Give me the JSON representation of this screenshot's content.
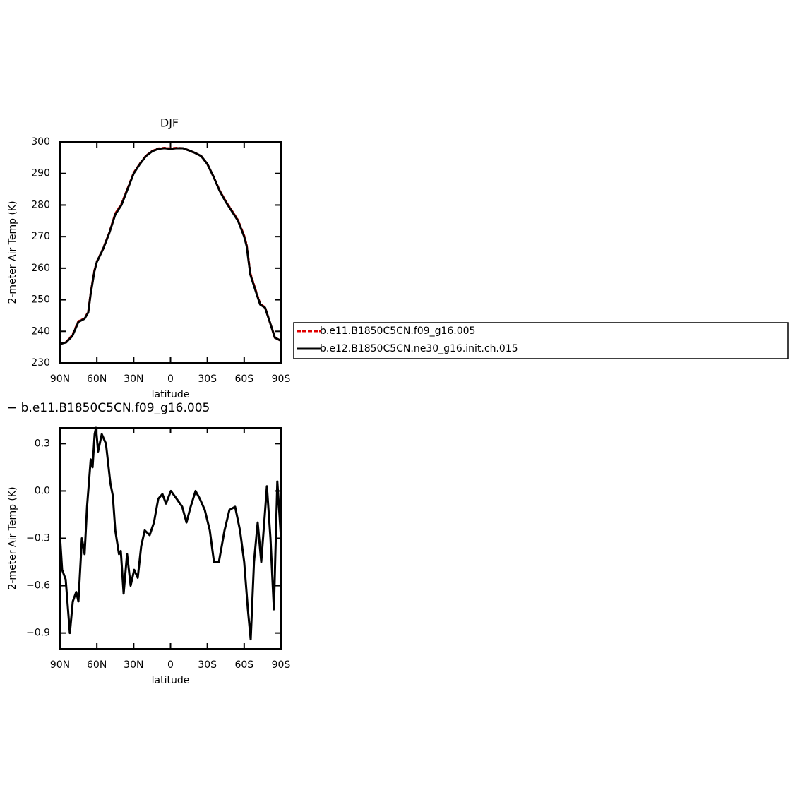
{
  "chart_data": [
    {
      "type": "line",
      "title": "DJF",
      "xlabel": "latitude",
      "ylabel": "2-meter Air Temp (K)",
      "x": [
        90,
        85,
        80,
        75,
        70,
        67,
        65,
        62,
        60,
        55,
        50,
        45,
        40,
        35,
        30,
        25,
        20,
        15,
        10,
        5,
        0,
        -5,
        -10,
        -15,
        -20,
        -25,
        -30,
        -35,
        -40,
        -45,
        -50,
        -55,
        -60,
        -62,
        -65,
        -70,
        -73,
        -77,
        -80,
        -85,
        -90
      ],
      "series": [
        {
          "name": "b.e11.B1850C5CN.f09_g16.005",
          "color": "#e00000",
          "linestyle": "dashed",
          "values": [
            236,
            236.6,
            238.8,
            243.2,
            244.1,
            246.2,
            252.2,
            259.2,
            262.1,
            266.1,
            271.1,
            277.3,
            280.3,
            285.2,
            290.2,
            293.1,
            295.6,
            297.1,
            297.9,
            298.1,
            297.9,
            298.1,
            298,
            297.3,
            296.5,
            295.5,
            293,
            289,
            284.6,
            281.2,
            278.2,
            275.2,
            270.3,
            267.4,
            258.4,
            252.3,
            248.7,
            247.6,
            244,
            238,
            237
          ]
        },
        {
          "name": "b.e12.B1850C5CN.ne30_g16.init.ch.015",
          "color": "#000000",
          "linestyle": "solid",
          "values": [
            236,
            236.5,
            238.5,
            243,
            244,
            246,
            252,
            259,
            262,
            266,
            271,
            277,
            280,
            285,
            290,
            293,
            295.5,
            297,
            297.8,
            298,
            297.8,
            298,
            298,
            297.3,
            296.5,
            295.5,
            293,
            289,
            284.5,
            281,
            278,
            275,
            270,
            267,
            258,
            252,
            248.5,
            247.5,
            244,
            238,
            237
          ]
        }
      ],
      "xlim": [
        90,
        -90
      ],
      "xticks": [
        {
          "value": 90,
          "label": "90N"
        },
        {
          "value": 60,
          "label": "60N"
        },
        {
          "value": 30,
          "label": "30N"
        },
        0,
        {
          "value": -30,
          "label": "30S"
        },
        {
          "value": -60,
          "label": "60S"
        },
        {
          "value": -90,
          "label": "90S"
        }
      ],
      "ylim": [
        230,
        300
      ],
      "yticks": [
        230,
        240,
        250,
        260,
        270,
        280,
        290,
        300
      ],
      "legend": "right"
    },
    {
      "type": "line",
      "title": "− b.e11.B1850C5CN.f09_g16.005",
      "xlabel": "latitude",
      "ylabel": "2-meter Air Temp (K)",
      "x": [
        90,
        88.3,
        85.4,
        82,
        79.6,
        76.8,
        75,
        72.2,
        70,
        68,
        65,
        63.5,
        61.8,
        60.7,
        59,
        56,
        52.6,
        49,
        47,
        45,
        42,
        40.5,
        38.2,
        35.4,
        32.5,
        29.6,
        26.7,
        23.9,
        21,
        17,
        13.5,
        10,
        6.6,
        3.7,
        -0.3,
        -5,
        -9.5,
        -13,
        -16.4,
        -20.4,
        -23.9,
        -27.9,
        -32,
        -35.4,
        -39.4,
        -44,
        -48,
        -52.6,
        -56.6,
        -60,
        -63,
        -65.3,
        -68,
        -71,
        -73.9,
        -76.8,
        -78.5,
        -81.4,
        -84.2,
        -87,
        -90
      ],
      "color": "#000000",
      "values": [
        -0.29,
        -0.5,
        -0.56,
        -0.9,
        -0.7,
        -0.64,
        -0.7,
        -0.3,
        -0.4,
        -0.1,
        0.2,
        0.15,
        0.36,
        0.4,
        0.25,
        0.36,
        0.3,
        0.05,
        -0.03,
        -0.25,
        -0.4,
        -0.38,
        -0.65,
        -0.4,
        -0.6,
        -0.5,
        -0.55,
        -0.35,
        -0.25,
        -0.28,
        -0.2,
        -0.05,
        -0.02,
        -0.08,
        0,
        -0.05,
        -0.1,
        -0.2,
        -0.1,
        0,
        -0.05,
        -0.12,
        -0.25,
        -0.45,
        -0.45,
        -0.25,
        -0.12,
        -0.1,
        -0.25,
        -0.45,
        -0.75,
        -0.94,
        -0.45,
        -0.2,
        -0.45,
        -0.15,
        0.03,
        -0.3,
        -0.75,
        0.06,
        -0.3
      ],
      "xlim": [
        90,
        -90
      ],
      "xticks": [
        {
          "value": 90,
          "label": "90N"
        },
        {
          "value": 60,
          "label": "60N"
        },
        {
          "value": 30,
          "label": "30N"
        },
        0,
        {
          "value": -30,
          "label": "30S"
        },
        {
          "value": -60,
          "label": "60S"
        },
        {
          "value": -90,
          "label": "90S"
        }
      ],
      "ylim": [
        -1.0,
        0.4
      ],
      "yticks": [
        {
          "value": -0.9,
          "label": "−0.9"
        },
        {
          "value": -0.6,
          "label": "−0.6"
        },
        {
          "value": -0.3,
          "label": "−0.3"
        },
        {
          "value": 0,
          "label": "0.0"
        },
        0.3
      ]
    }
  ]
}
